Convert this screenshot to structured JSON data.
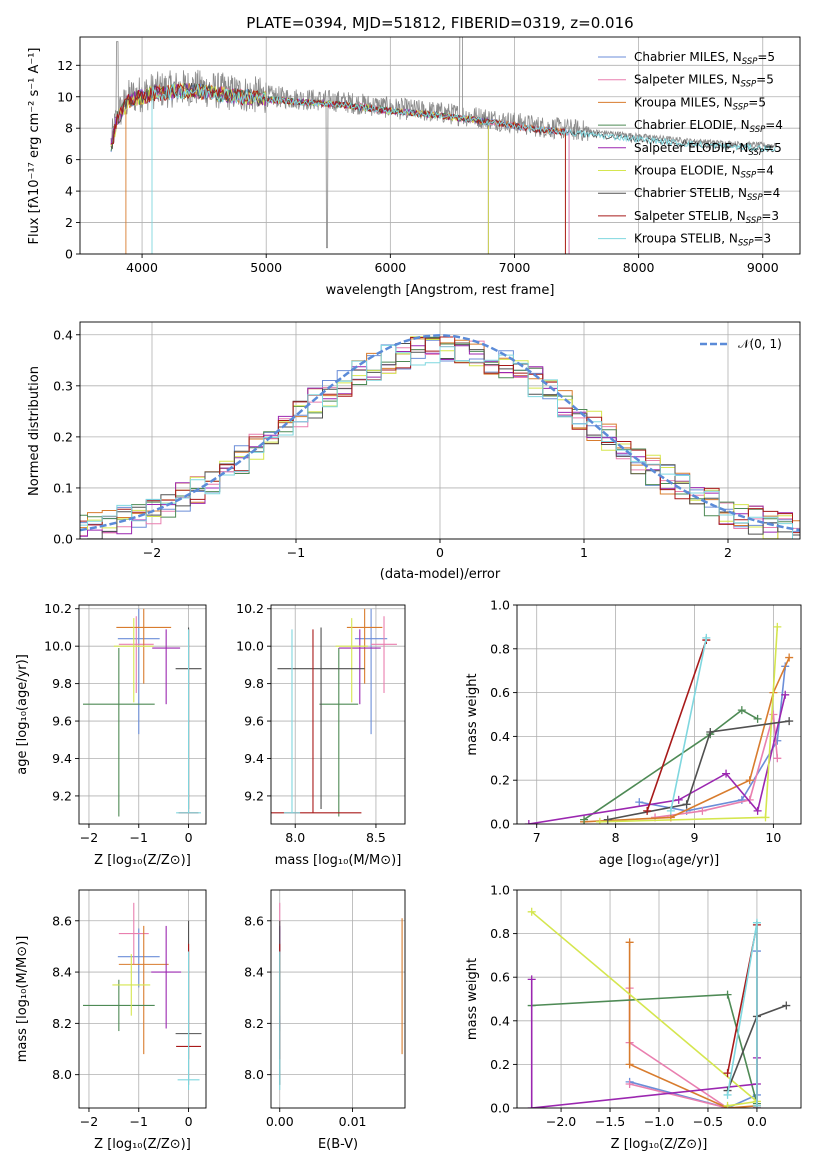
{
  "palette": [
    "#6b8ed8",
    "#e97faf",
    "#d87c2e",
    "#4e8a55",
    "#9b27b0",
    "#d5e64f",
    "#505050",
    "#a81a1a",
    "#7fd7df"
  ],
  "chart_data": [
    {
      "id": "spectrum",
      "type": "line",
      "title": "PLATE=0394, MJD=51812, FIBERID=0319, z=0.016",
      "xlabel": "wavelength [Angstrom, rest frame]",
      "ylabel": "Flux [fλ10⁻¹⁷ erg cm⁻² s⁻¹ A⁻¹]",
      "xlim": [
        3500,
        9300
      ],
      "ylim": [
        0,
        13.8
      ],
      "xticks": [
        4000,
        5000,
        6000,
        7000,
        8000,
        9000
      ],
      "yticks": [
        0,
        2,
        4,
        6,
        8,
        10,
        12
      ],
      "continuum": [
        [
          3750,
          7.0
        ],
        [
          3800,
          8.8
        ],
        [
          3900,
          10.0
        ],
        [
          4100,
          10.4
        ],
        [
          4400,
          10.6
        ],
        [
          4800,
          10.2
        ],
        [
          5200,
          9.9
        ],
        [
          5600,
          9.7
        ],
        [
          6000,
          9.3
        ],
        [
          6400,
          9.0
        ],
        [
          6800,
          8.6
        ],
        [
          7200,
          8.1
        ],
        [
          7600,
          7.8
        ],
        [
          8000,
          7.5
        ],
        [
          8400,
          7.2
        ],
        [
          8800,
          7.0
        ],
        [
          9100,
          6.9
        ]
      ],
      "data_range": [
        3750,
        9100
      ],
      "legend": [
        "Chabrier MILES, N_SSP=5",
        "Salpeter MILES, N_SSP=5",
        "Kroupa MILES, N_SSP=5",
        "Chabrier ELODIE, N_SSP=4",
        "Salpeter ELODIE, N_SSP=5",
        "Kroupa ELODIE, N_SSP=4",
        "Chabrier STELIB, N_SSP=4",
        "Salpeter STELIB, N_SSP=3",
        "Kroupa STELIB, N_SSP=3"
      ],
      "model_cutoffs": [
        [
          3750,
          7440
        ],
        [
          3750,
          7440
        ],
        [
          3870,
          7410
        ],
        [
          3750,
          6790
        ],
        [
          3750,
          6790
        ],
        [
          3750,
          6790
        ],
        [
          3750,
          9100
        ],
        [
          3750,
          7410
        ],
        [
          4080,
          9100
        ]
      ]
    },
    {
      "id": "residuals",
      "type": "histogram",
      "xlabel": "(data-model)/error",
      "ylabel": "Normed distribution",
      "xlim": [
        -2.5,
        2.5
      ],
      "ylim": [
        0,
        0.425
      ],
      "xticks": [
        -2,
        -1,
        0,
        1,
        2
      ],
      "yticks": [
        0.0,
        0.1,
        0.2,
        0.3,
        0.4
      ],
      "reference": "N(0,1)",
      "legend": "𝒩(0, 1)"
    },
    {
      "id": "age-vs-Z",
      "type": "scatter",
      "xlabel": "Z [log₁₀(Z/Z⊙)]",
      "ylabel": "age  [log₁₀(age/yr)]",
      "xlim": [
        -2.2,
        0.35
      ],
      "ylim": [
        9.05,
        10.22
      ],
      "xticks": [
        -2,
        -1,
        0
      ],
      "yticks": [
        9.2,
        9.4,
        9.6,
        9.8,
        10.0,
        10.2
      ],
      "points": [
        {
          "x": -1.0,
          "xerr": 0.42,
          "y": 10.04,
          "yerr": [
            0.51,
            0.16
          ]
        },
        {
          "x": -1.05,
          "xerr": 0.35,
          "y": 10.01,
          "yerr": [
            0.26,
            0.15
          ]
        },
        {
          "x": -0.9,
          "xerr": 0.55,
          "y": 10.1,
          "yerr": [
            0.3,
            0.1
          ]
        },
        {
          "x": -1.4,
          "xerr": 0.72,
          "y": 9.69,
          "yerr": [
            0.6,
            0.3
          ]
        },
        {
          "x": -0.45,
          "xerr": 0.28,
          "y": 9.99,
          "yerr": [
            0.3,
            0.1
          ]
        },
        {
          "x": -1.1,
          "xerr": 0.4,
          "y": 10.0,
          "yerr": [
            0.3,
            0.15
          ]
        },
        {
          "x": 0.0,
          "xerr": 0.26,
          "y": 9.88,
          "yerr": [
            0.75,
            0.22
          ]
        },
        {
          "x": 0.0,
          "xerr": 0.2,
          "y": 9.11,
          "yerr": [
            0.0,
            0.98
          ]
        },
        {
          "x": 0.0,
          "xerr": 0.25,
          "y": 9.11,
          "yerr": [
            0.0,
            0.98
          ]
        }
      ]
    },
    {
      "id": "age-vs-mass",
      "type": "scatter",
      "xlabel": "mass [log₁₀(M/M⊙)]",
      "ylabel": "",
      "xlim": [
        7.85,
        8.68
      ],
      "ylim": [
        9.05,
        10.22
      ],
      "xticks": [
        8.0,
        8.5
      ],
      "yticks": [
        9.2,
        9.4,
        9.6,
        9.8,
        10.0,
        10.2
      ],
      "points": [
        {
          "x": 8.47,
          "xerr": 0.1,
          "y": 10.04,
          "yerr": [
            0.51,
            0.16
          ]
        },
        {
          "x": 8.55,
          "xerr": 0.08,
          "y": 10.01,
          "yerr": [
            0.26,
            0.15
          ]
        },
        {
          "x": 8.43,
          "xerr": 0.11,
          "y": 10.1,
          "yerr": [
            0.3,
            0.1
          ]
        },
        {
          "x": 8.27,
          "xerr": 0.12,
          "y": 9.69,
          "yerr": [
            0.6,
            0.3
          ]
        },
        {
          "x": 8.4,
          "xerr": 0.13,
          "y": 9.99,
          "yerr": [
            0.3,
            0.1
          ]
        },
        {
          "x": 8.35,
          "xerr": 0.1,
          "y": 10.0,
          "yerr": [
            0.3,
            0.15
          ]
        },
        {
          "x": 8.16,
          "xerr": 0.27,
          "y": 9.88,
          "yerr": [
            0.75,
            0.22
          ]
        },
        {
          "x": 8.11,
          "xerr": 0.3,
          "y": 9.11,
          "yerr": [
            0.0,
            0.98
          ]
        },
        {
          "x": 7.98,
          "xerr": 0.05,
          "y": 9.11,
          "yerr": [
            0.0,
            0.98
          ]
        }
      ]
    },
    {
      "id": "weight-vs-age",
      "type": "line",
      "xlabel": "age  [log₁₀(age/yr)]",
      "ylabel": "mass weight",
      "xlim": [
        6.75,
        10.35
      ],
      "ylim": [
        0,
        1.0
      ],
      "xticks": [
        7,
        8,
        9,
        10
      ],
      "yticks": [
        0.0,
        0.2,
        0.4,
        0.6,
        0.8,
        1.0
      ],
      "series": [
        {
          "values": [
            [
              8.3,
              0.1
            ],
            [
              8.9,
              0.06
            ],
            [
              9.6,
              0.11
            ],
            [
              10.05,
              0.38
            ],
            [
              10.15,
              0.72
            ]
          ]
        },
        {
          "values": [
            [
              8.5,
              0.03
            ],
            [
              9.1,
              0.06
            ],
            [
              9.7,
              0.11
            ],
            [
              10.0,
              0.5
            ],
            [
              10.05,
              0.3
            ]
          ]
        },
        {
          "values": [
            [
              7.6,
              0.01
            ],
            [
              8.7,
              0.03
            ],
            [
              9.7,
              0.2
            ],
            [
              10.0,
              0.6
            ],
            [
              10.2,
              0.76
            ]
          ]
        },
        {
          "values": [
            [
              7.6,
              0.02
            ],
            [
              9.2,
              0.41
            ],
            [
              9.6,
              0.52
            ],
            [
              9.8,
              0.48
            ]
          ]
        },
        {
          "values": [
            [
              6.9,
              0.0
            ],
            [
              8.8,
              0.11
            ],
            [
              9.4,
              0.23
            ],
            [
              9.8,
              0.06
            ],
            [
              10.15,
              0.59
            ]
          ]
        },
        {
          "values": [
            [
              7.8,
              0.01
            ],
            [
              9.9,
              0.03
            ],
            [
              10.05,
              0.9
            ]
          ]
        },
        {
          "values": [
            [
              7.9,
              0.02
            ],
            [
              8.9,
              0.09
            ],
            [
              9.2,
              0.42
            ],
            [
              10.2,
              0.47
            ]
          ]
        },
        {
          "values": [
            [
              8.4,
              0.06
            ],
            [
              9.15,
              0.84
            ]
          ]
        },
        {
          "values": [
            [
              8.7,
              0.06
            ],
            [
              9.15,
              0.85
            ]
          ]
        }
      ]
    },
    {
      "id": "mass-vs-Z",
      "type": "scatter",
      "xlabel": "Z [log₁₀(Z/Z⊙)]",
      "ylabel": "mass [log₁₀(M/M⊙)]",
      "xlim": [
        -2.2,
        0.35
      ],
      "ylim": [
        7.87,
        8.72
      ],
      "xticks": [
        -2,
        -1,
        0
      ],
      "yticks": [
        8.0,
        8.2,
        8.4,
        8.6
      ],
      "points": [
        {
          "x": -1.0,
          "xerr": 0.42,
          "y": 8.46,
          "yerr": [
            0.12,
            0.11
          ]
        },
        {
          "x": -1.1,
          "xerr": 0.3,
          "y": 8.55,
          "yerr": [
            0.12,
            0.12
          ]
        },
        {
          "x": -0.9,
          "xerr": 0.5,
          "y": 8.43,
          "yerr": [
            0.35,
            0.15
          ]
        },
        {
          "x": -1.4,
          "xerr": 0.72,
          "y": 8.27,
          "yerr": [
            0.1,
            0.1
          ]
        },
        {
          "x": -0.45,
          "xerr": 0.3,
          "y": 8.4,
          "yerr": [
            0.22,
            0.18
          ]
        },
        {
          "x": -1.15,
          "xerr": 0.38,
          "y": 8.35,
          "yerr": [
            0.12,
            0.12
          ]
        },
        {
          "x": 0.0,
          "xerr": 0.26,
          "y": 8.16,
          "yerr": [
            0.2,
            0.44
          ]
        },
        {
          "x": 0.0,
          "xerr": 0.25,
          "y": 8.11,
          "yerr": [
            0.05,
            0.4
          ]
        },
        {
          "x": 0.0,
          "xerr": 0.22,
          "y": 7.98,
          "yerr": [
            0.04,
            0.5
          ]
        }
      ]
    },
    {
      "id": "mass-vs-ebv",
      "type": "scatter",
      "xlabel": "E(B-V)",
      "ylabel": "",
      "xlim": [
        -0.0012,
        0.0172
      ],
      "ylim": [
        7.87,
        8.72
      ],
      "xticks": [
        0.0,
        0.01
      ],
      "yticks": [
        8.0,
        8.2,
        8.4,
        8.6
      ],
      "points": [
        {
          "x": 0.0,
          "y": 8.46,
          "yerr": [
            0.12,
            0.11
          ]
        },
        {
          "x": 0.0,
          "y": 8.55,
          "yerr": [
            0.12,
            0.12
          ]
        },
        {
          "x": 0.0168,
          "y": 8.43,
          "yerr": [
            0.35,
            0.18
          ]
        },
        {
          "x": 0.0,
          "y": 8.27,
          "yerr": [
            0.1,
            0.1
          ]
        },
        {
          "x": 0.0,
          "y": 8.4,
          "yerr": [
            0.22,
            0.18
          ]
        },
        {
          "x": 0.0,
          "y": 8.35,
          "yerr": [
            0.12,
            0.12
          ]
        },
        {
          "x": 0.0,
          "y": 8.16,
          "yerr": [
            0.2,
            0.44
          ]
        },
        {
          "x": 0.0,
          "y": 8.11,
          "yerr": [
            0.05,
            0.4
          ]
        },
        {
          "x": 0.0,
          "y": 7.98,
          "yerr": [
            0.04,
            0.5
          ]
        }
      ]
    },
    {
      "id": "weight-vs-Z",
      "type": "line",
      "xlabel": "Z [log₁₀(Z/Z⊙)]",
      "ylabel": "mass weight",
      "xlim": [
        -2.45,
        0.45
      ],
      "ylim": [
        0,
        1.0
      ],
      "xticks": [
        -2.0,
        -1.5,
        -1.0,
        -0.5,
        0.0
      ],
      "yticks": [
        0.0,
        0.2,
        0.4,
        0.6,
        0.8,
        1.0
      ],
      "series": [
        {
          "values": [
            [
              -1.3,
              0.12
            ],
            [
              -0.3,
              0.0
            ],
            [
              0.0,
              0.06
            ],
            [
              0.0,
              0.72
            ]
          ]
        },
        {
          "values": [
            [
              -1.3,
              0.11
            ],
            [
              -0.3,
              0.0
            ],
            [
              -1.3,
              0.3
            ],
            [
              -1.3,
              0.55
            ]
          ]
        },
        {
          "values": [
            [
              -1.3,
              0.76
            ],
            [
              -1.3,
              0.2
            ],
            [
              -0.3,
              0.0
            ],
            [
              0.0,
              0.01
            ]
          ]
        },
        {
          "values": [
            [
              -2.3,
              0.47
            ],
            [
              -0.3,
              0.52
            ],
            [
              0.0,
              0.02
            ]
          ]
        },
        {
          "values": [
            [
              -2.3,
              0.59
            ],
            [
              -2.3,
              0.0
            ],
            [
              0.0,
              0.11
            ],
            [
              0.0,
              0.23
            ],
            [
              0.0,
              0.0
            ]
          ]
        },
        {
          "values": [
            [
              -2.3,
              0.9
            ],
            [
              0.0,
              0.03
            ],
            [
              -0.3,
              0.01
            ]
          ]
        },
        {
          "values": [
            [
              -0.3,
              0.08
            ],
            [
              0.0,
              0.42
            ],
            [
              0.3,
              0.47
            ]
          ]
        },
        {
          "values": [
            [
              -0.3,
              0.16
            ],
            [
              0.0,
              0.84
            ],
            [
              0.0,
              0.0
            ]
          ]
        },
        {
          "values": [
            [
              -0.3,
              0.06
            ],
            [
              0.0,
              0.85
            ],
            [
              0.0,
              0.01
            ]
          ]
        }
      ]
    }
  ]
}
